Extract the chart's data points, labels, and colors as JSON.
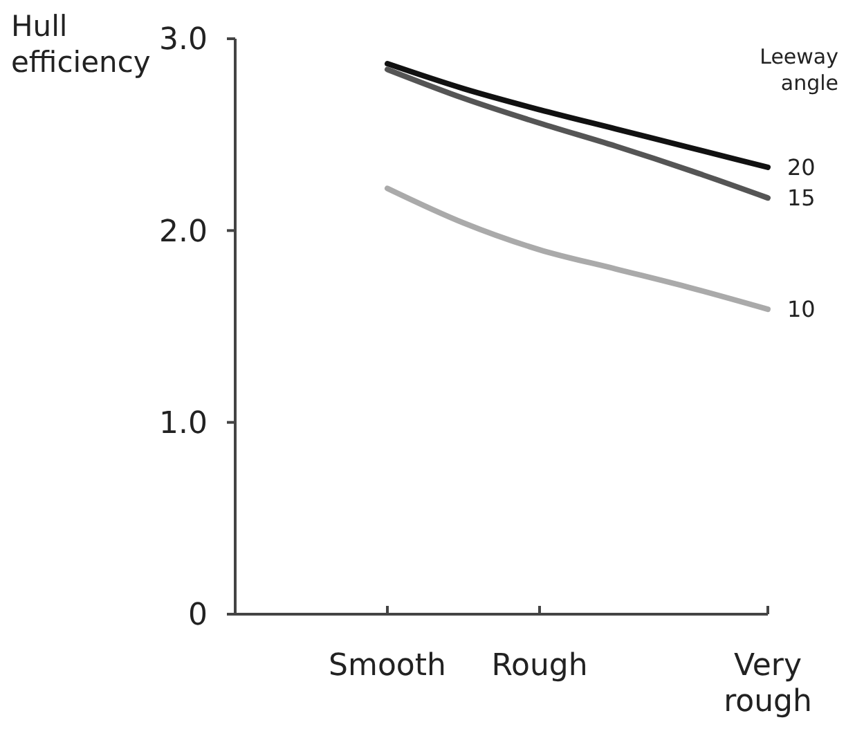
{
  "chart_data": {
    "type": "line",
    "ylabel": "Hull efficiency",
    "legend_title": "Leeway angle",
    "categories": [
      null,
      null,
      "Smooth",
      null,
      "Rough",
      null,
      null,
      "Very rough"
    ],
    "ylim": [
      0,
      3.0
    ],
    "yticks": [
      {
        "value": 0,
        "label": "0"
      },
      {
        "value": 1,
        "label": "1.0"
      },
      {
        "value": 2,
        "label": "2.0"
      },
      {
        "value": 3,
        "label": "3.0"
      }
    ],
    "grid": false,
    "legend": "right",
    "marker": "none",
    "line_style": "solid",
    "series": [
      {
        "name": "20",
        "color": "#111111",
        "values": [
          null,
          null,
          2.87,
          2.74,
          2.63,
          2.53,
          2.43,
          2.33
        ]
      },
      {
        "name": "15",
        "color": "#555555",
        "values": [
          null,
          null,
          2.84,
          2.69,
          2.56,
          2.44,
          2.31,
          2.17
        ]
      },
      {
        "name": "10",
        "color": "#aaaaaa",
        "values": [
          null,
          null,
          2.22,
          2.04,
          1.9,
          1.8,
          1.7,
          1.59
        ]
      }
    ]
  }
}
